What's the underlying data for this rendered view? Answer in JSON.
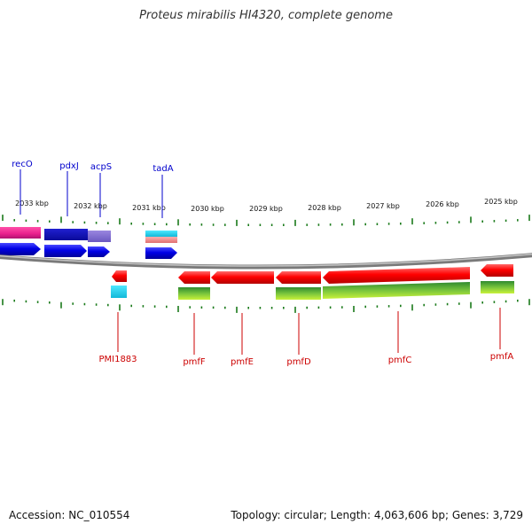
{
  "title": "Proteus mirabilis HI4320, complete genome",
  "footer": {
    "accession": "Accession: NC_010554",
    "summary": "Topology: circular; Length: 4,063,606 bp; Genes: 3,729"
  },
  "colors": {
    "top_strand_label": "#0000cc",
    "bottom_strand_label": "#cc0000",
    "tick": "#1a7a1a",
    "backbone": "#8c8c8c"
  },
  "scale_labels": [
    {
      "kbp": 2033,
      "text": "2033 kbp"
    },
    {
      "kbp": 2032,
      "text": "2032 kbp"
    },
    {
      "kbp": 2031,
      "text": "2031 kbp"
    },
    {
      "kbp": 2030,
      "text": "2030 kbp"
    },
    {
      "kbp": 2029,
      "text": "2029 kbp"
    },
    {
      "kbp": 2028,
      "text": "2028 kbp"
    },
    {
      "kbp": 2027,
      "text": "2027 kbp"
    },
    {
      "kbp": 2026,
      "text": "2026 kbp"
    },
    {
      "kbp": 2025,
      "text": "2025 kbp"
    }
  ],
  "top_genes": [
    {
      "name": "recO"
    },
    {
      "name": "pdxJ"
    },
    {
      "name": "acpS"
    },
    {
      "name": "tadA"
    }
  ],
  "bottom_genes": [
    {
      "name": "PMI1883"
    },
    {
      "name": "pmfF"
    },
    {
      "name": "pmfE"
    },
    {
      "name": "pmfD"
    },
    {
      "name": "pmfC"
    },
    {
      "name": "pmfA"
    }
  ]
}
